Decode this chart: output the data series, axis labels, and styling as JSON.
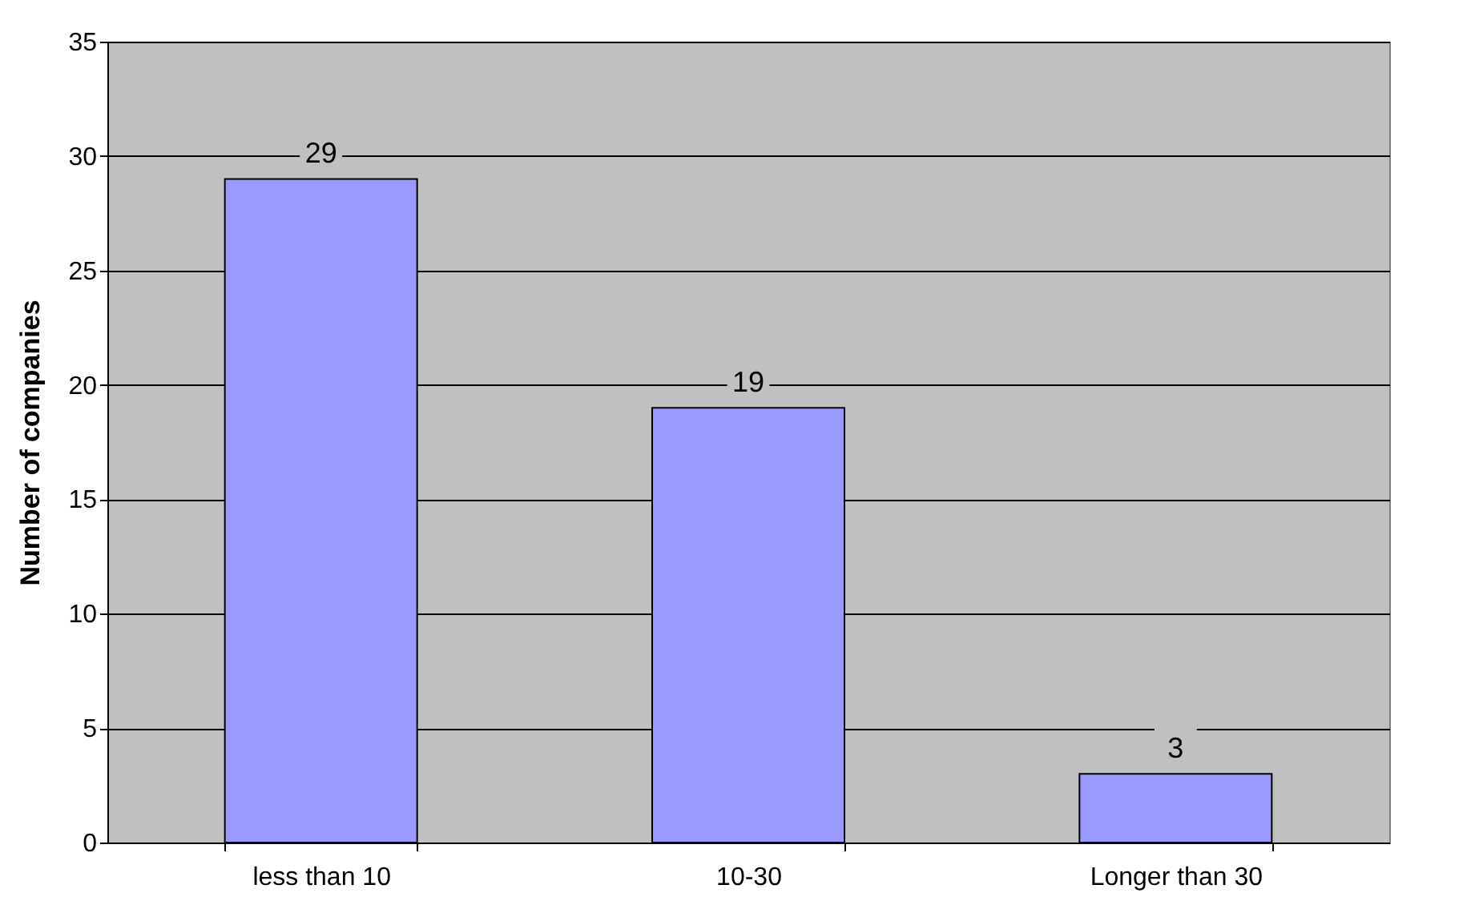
{
  "chart_data": {
    "type": "bar",
    "ylabel": "Number of companies",
    "categories": [
      "less than 10",
      "10-30",
      "Longer than 30"
    ],
    "values": [
      29,
      19,
      3
    ],
    "color": "#9999ff",
    "ylim": [
      0,
      35
    ],
    "yticks": [
      0,
      5,
      10,
      15,
      20,
      25,
      30,
      35
    ],
    "grid": "y",
    "data_labels": true
  }
}
